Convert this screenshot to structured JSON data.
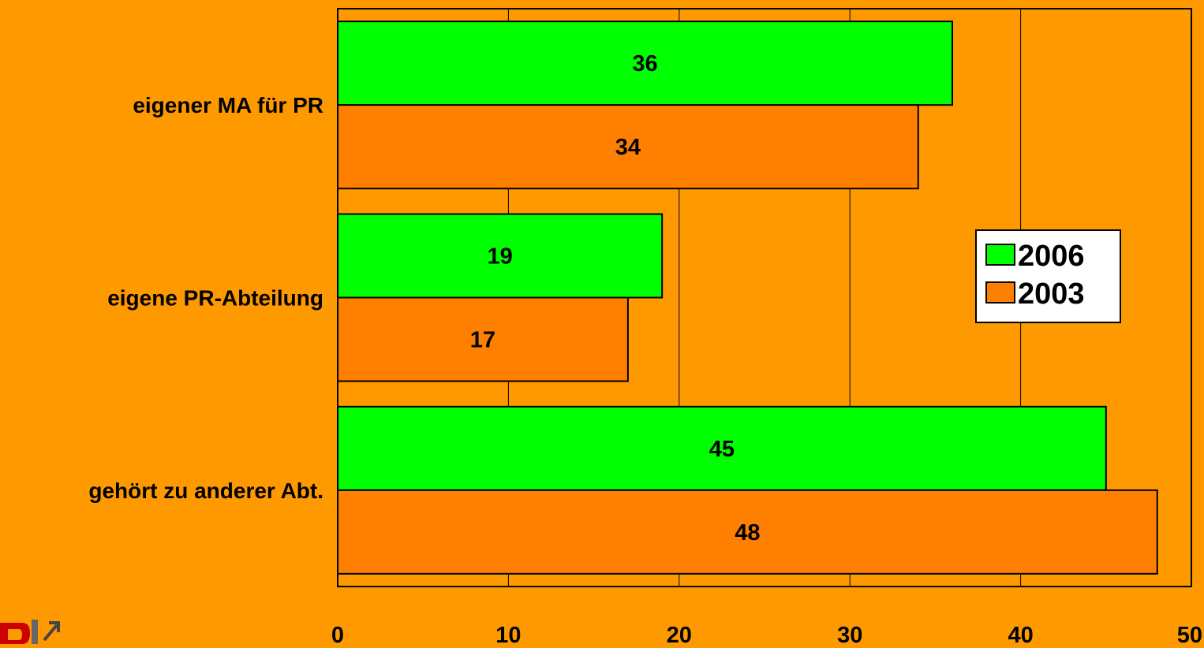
{
  "chart_data": {
    "type": "bar",
    "orientation": "horizontal",
    "title": "",
    "xlabel": "",
    "ylabel": "",
    "categories": [
      "eigener MA für PR",
      "eigene PR-Abteilung",
      "gehört zu anderer Abt."
    ],
    "series": [
      {
        "name": "2006",
        "values": [
          36,
          19,
          45
        ],
        "color": "#00FF00"
      },
      {
        "name": "2003",
        "values": [
          34,
          17,
          48
        ],
        "color": "#FF8000"
      }
    ],
    "xlim": [
      0,
      50
    ],
    "ticks": [
      0,
      10,
      20,
      30,
      40,
      50
    ],
    "grid": true,
    "legend_position": "right",
    "data_labels": true,
    "background_color": "#FF9900",
    "plot_background_color": "#FF9900",
    "logo_icon": "logo-icon"
  }
}
